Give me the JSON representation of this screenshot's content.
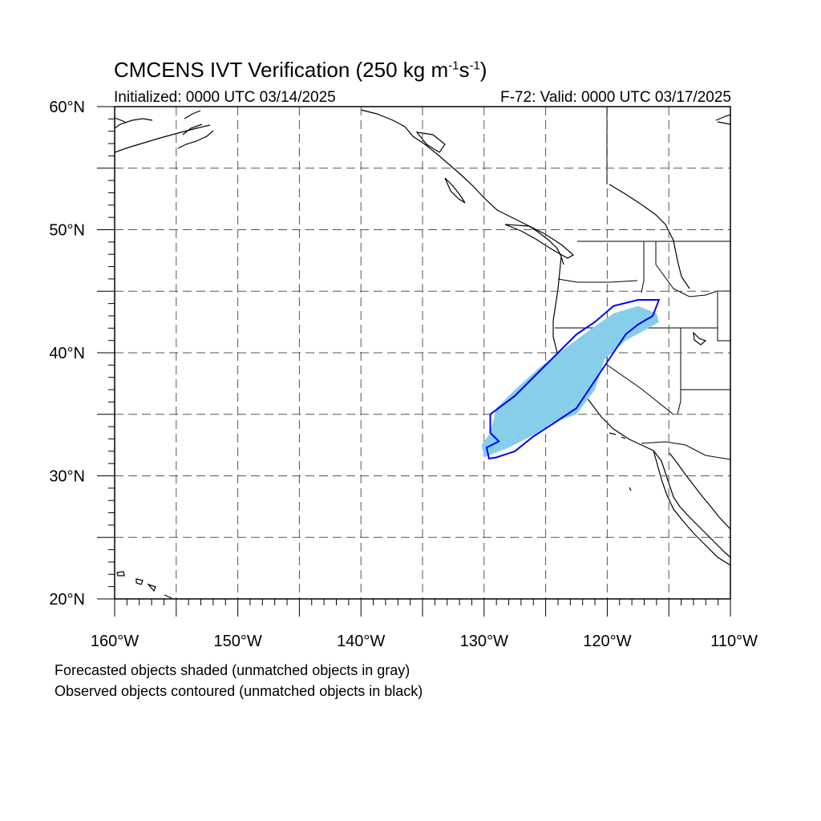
{
  "title": {
    "prefix": "CMCENS IVT Verification (250 kg m",
    "sup1": "-1",
    "mid": "s",
    "sup2": "-1",
    "suffix": ")"
  },
  "subtitle_left": "Initialized: 0000 UTC 03/14/2025",
  "subtitle_right": "F-72: Valid: 0000 UTC 03/17/2025",
  "lat_labels": [
    "60°N",
    "50°N",
    "40°N",
    "30°N",
    "20°N"
  ],
  "lon_labels": [
    "160°W",
    "150°W",
    "140°W",
    "130°W",
    "120°W",
    "110°W"
  ],
  "map_extent": {
    "lon": [
      -160,
      -110
    ],
    "lat": [
      20,
      60
    ]
  },
  "colors": {
    "forecast_fill": "#87ceeb",
    "observed_contour": "#0000ff",
    "coastline": "#000000",
    "grid": "#555555"
  },
  "forecast_object": {
    "label": "Forecasted object",
    "polygon": [
      [
        -130.0,
        31.5
      ],
      [
        -128.0,
        32.3
      ],
      [
        -126.0,
        33.3
      ],
      [
        -124.5,
        34.3
      ],
      [
        -122.5,
        35.0
      ],
      [
        -121.0,
        37.0
      ],
      [
        -120.2,
        39.5
      ],
      [
        -118.5,
        41.0
      ],
      [
        -117.0,
        41.8
      ],
      [
        -115.8,
        42.5
      ],
      [
        -116.0,
        43.2
      ],
      [
        -117.5,
        43.8
      ],
      [
        -119.5,
        43.2
      ],
      [
        -121.5,
        41.8
      ],
      [
        -123.5,
        40.3
      ],
      [
        -125.5,
        38.8
      ],
      [
        -127.5,
        37.0
      ],
      [
        -129.0,
        35.5
      ],
      [
        -129.5,
        33.5
      ],
      [
        -130.2,
        32.5
      ]
    ]
  },
  "observed_object": {
    "label": "Observed object",
    "polygon": [
      [
        -129.0,
        31.5
      ],
      [
        -127.5,
        32.0
      ],
      [
        -126.0,
        33.2
      ],
      [
        -124.0,
        34.5
      ],
      [
        -122.5,
        35.5
      ],
      [
        -121.5,
        37.0
      ],
      [
        -120.5,
        38.5
      ],
      [
        -119.5,
        40.0
      ],
      [
        -118.5,
        41.5
      ],
      [
        -117.5,
        42.3
      ],
      [
        -116.3,
        43.0
      ],
      [
        -115.8,
        44.3
      ],
      [
        -117.5,
        44.3
      ],
      [
        -119.5,
        43.8
      ],
      [
        -121.0,
        42.5
      ],
      [
        -122.5,
        41.5
      ],
      [
        -124.0,
        40.0
      ],
      [
        -125.5,
        38.5
      ],
      [
        -127.5,
        36.5
      ],
      [
        -129.5,
        35.0
      ],
      [
        -129.5,
        33.5
      ],
      [
        -128.8,
        32.8
      ],
      [
        -129.8,
        32.3
      ],
      [
        -129.6,
        31.4
      ]
    ]
  },
  "footnote_1": "Forecasted objects shaded (unmatched objects in gray)",
  "footnote_2": "Observed objects contoured (unmatched objects in black)"
}
